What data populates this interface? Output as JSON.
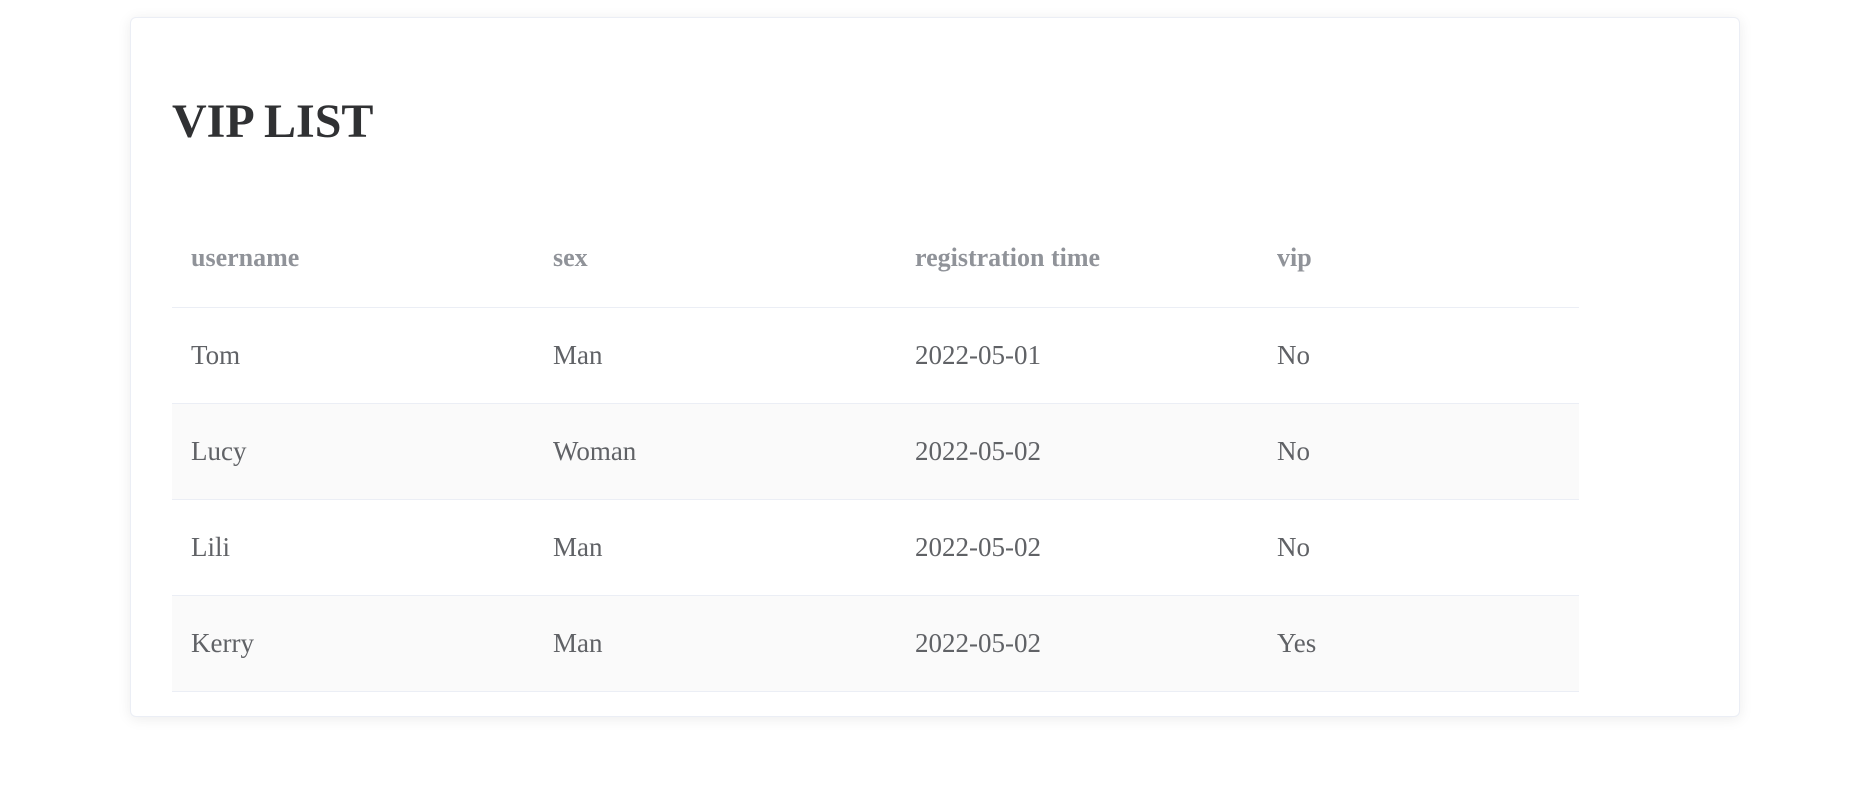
{
  "title": "VIP LIST",
  "columns": [
    "username",
    "sex",
    "registration time",
    "vip"
  ],
  "rows": [
    [
      "Tom",
      "Man",
      "2022-05-01",
      "No"
    ],
    [
      "Lucy",
      "Woman",
      "2022-05-02",
      "No"
    ],
    [
      "Lili",
      "Man",
      "2022-05-02",
      "No"
    ],
    [
      "Kerry",
      "Man",
      "2022-05-02",
      "Yes"
    ]
  ]
}
